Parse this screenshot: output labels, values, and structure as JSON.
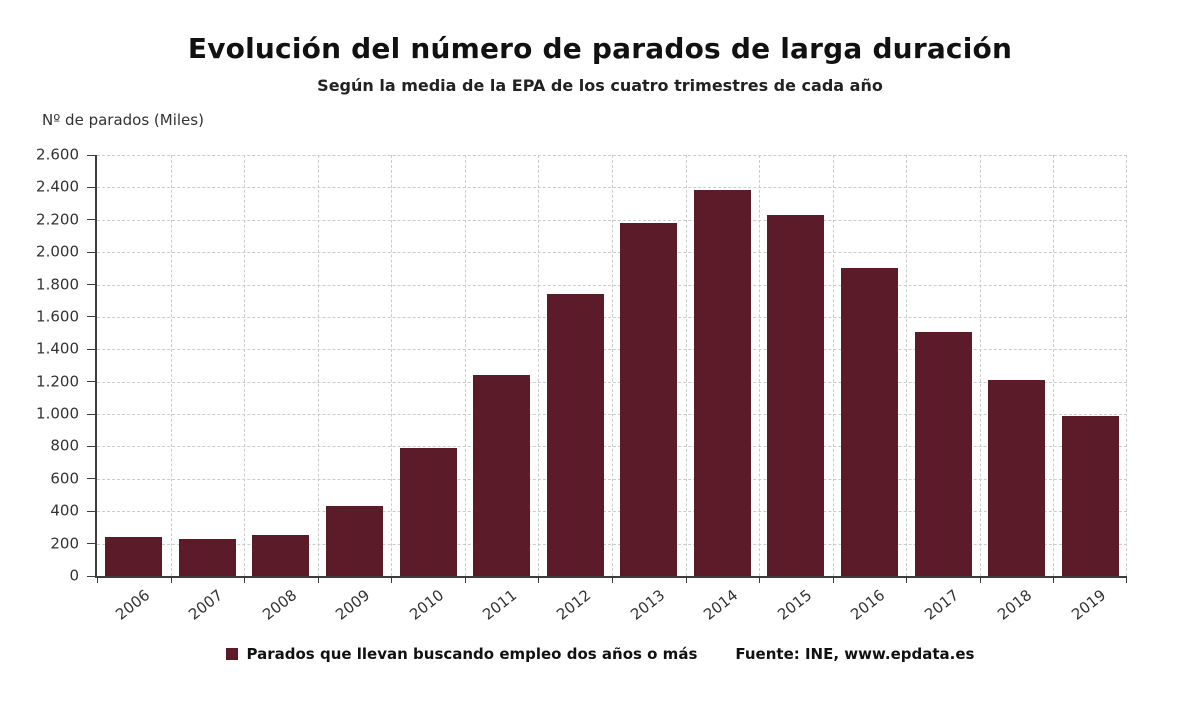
{
  "chart_data": {
    "type": "bar",
    "title": "Evolución del número de parados de larga duración",
    "subtitle": "Según la media de la EPA de los cuatro trimestres de cada año",
    "ylabel": "Nº de parados (Miles)",
    "categories": [
      "2006",
      "2007",
      "2008",
      "2009",
      "2010",
      "2011",
      "2012",
      "2013",
      "2014",
      "2015",
      "2016",
      "2017",
      "2018",
      "2019"
    ],
    "values": [
      240,
      226,
      256,
      433,
      791,
      1241,
      1741,
      2181,
      2385,
      2228,
      1900,
      1505,
      1211,
      990
    ],
    "ylim": [
      0,
      2600
    ],
    "ytick_step": 200,
    "y_ticks": [
      "0",
      "200",
      "400",
      "600",
      "800",
      "1.000",
      "1.200",
      "1.400",
      "1.600",
      "1.800",
      "2.000",
      "2.200",
      "2.400",
      "2.600"
    ],
    "grid": true,
    "legend_position": "bottom",
    "bar_color": "#5b1b29",
    "axis_color": "#3d3d3d",
    "grid_color": "#cccccc",
    "legend": {
      "label": "Parados que llevan buscando empleo dos años o más",
      "swatch_color": "#5b1b29"
    },
    "source": "Fuente: INE, www.epdata.es"
  }
}
